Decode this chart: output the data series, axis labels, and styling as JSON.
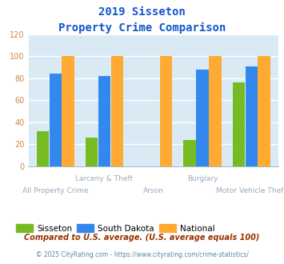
{
  "title_line1": "2019 Sisseton",
  "title_line2": "Property Crime Comparison",
  "categories": [
    "All Property Crime",
    "Larceny & Theft",
    "Arson",
    "Burglary",
    "Motor Vehicle Theft"
  ],
  "sisseton": [
    32,
    26,
    0,
    24,
    76
  ],
  "south_dakota": [
    84,
    82,
    0,
    88,
    91
  ],
  "national": [
    100,
    100,
    100,
    100,
    100
  ],
  "colors": {
    "sisseton": "#77bb22",
    "south_dakota": "#3388ee",
    "national": "#ffaa33"
  },
  "ylim": [
    0,
    120
  ],
  "yticks": [
    0,
    20,
    40,
    60,
    80,
    100,
    120
  ],
  "bg_color": "#daeaf5",
  "legend_labels": [
    "Sisseton",
    "South Dakota",
    "National"
  ],
  "footnote1": "Compared to U.S. average. (U.S. average equals 100)",
  "footnote2": "© 2025 CityRating.com - https://www.cityrating.com/crime-statistics/",
  "title_color": "#1155cc",
  "footnote1_color": "#993300",
  "footnote2_color": "#5588aa",
  "xlabel_color": "#99aabb",
  "ytick_color": "#cc8844",
  "bar_width": 0.25,
  "bar_gap": 0.01
}
